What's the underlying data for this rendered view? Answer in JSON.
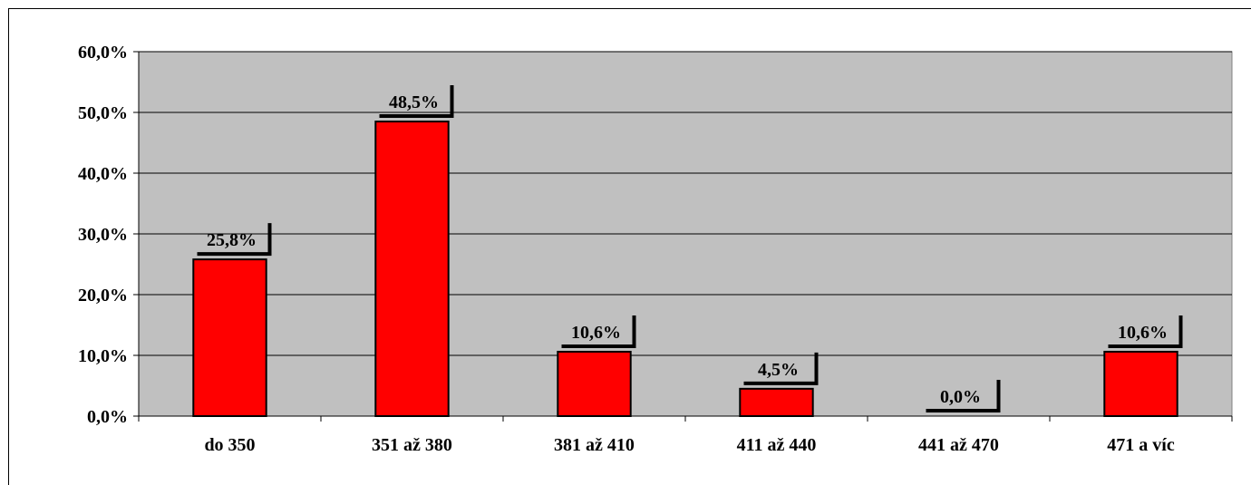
{
  "chart_data": {
    "type": "bar",
    "categories": [
      "do 350",
      "351 až 380",
      "381 až 410",
      "411 až 440",
      "441 až 470",
      "471 a víc"
    ],
    "values": [
      25.8,
      48.5,
      10.6,
      4.5,
      0.0,
      10.6
    ],
    "data_labels": [
      "25,8%",
      "48,5%",
      "10,6%",
      "4,5%",
      "0,0%",
      "10,6%"
    ],
    "y_ticks": [
      "0,0%",
      "10,0%",
      "20,0%",
      "30,0%",
      "40,0%",
      "50,0%",
      "60,0%"
    ],
    "ylim": [
      0,
      60
    ],
    "y_step": 10,
    "title": "",
    "xlabel": "",
    "ylabel": "",
    "grid": true,
    "colors": {
      "bar_fill": "#ff0000",
      "bar_stroke": "#000000",
      "plot_background": "#c0c0c0",
      "gridline": "#000000"
    }
  }
}
